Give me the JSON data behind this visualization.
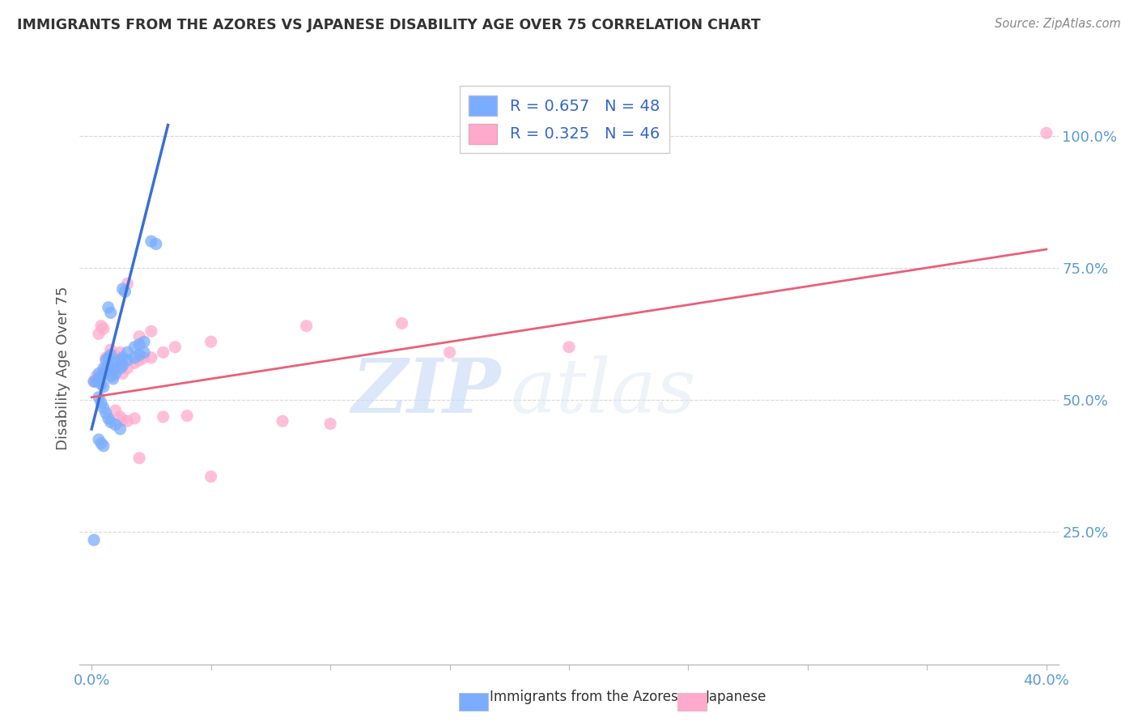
{
  "title": "IMMIGRANTS FROM THE AZORES VS JAPANESE DISABILITY AGE OVER 75 CORRELATION CHART",
  "source": "Source: ZipAtlas.com",
  "ylabel": "Disability Age Over 75",
  "ytick_positions": [
    0.25,
    0.5,
    0.75,
    1.0
  ],
  "ytick_labels": [
    "25.0%",
    "50.0%",
    "75.0%",
    "100.0%"
  ],
  "xtick_positions": [
    0.0,
    0.05,
    0.1,
    0.15,
    0.2,
    0.25,
    0.3,
    0.35,
    0.4
  ],
  "xtick_labels": [
    "0.0%",
    "",
    "",
    "",
    "",
    "",
    "",
    "",
    "40.0%"
  ],
  "legend_text1": "R = 0.657   N = 48",
  "legend_text2": "R = 0.325   N = 46",
  "legend_label1": "Immigrants from the Azores",
  "legend_label2": "Japanese",
  "blue_color": "#7aadff",
  "pink_color": "#ffaacc",
  "blue_line_color": "#3b6fd4",
  "pink_line_color": "#e8607a",
  "blue_scatter": [
    [
      0.001,
      0.535
    ],
    [
      0.002,
      0.535
    ],
    [
      0.003,
      0.54
    ],
    [
      0.003,
      0.55
    ],
    [
      0.004,
      0.545
    ],
    [
      0.004,
      0.53
    ],
    [
      0.005,
      0.56
    ],
    [
      0.005,
      0.525
    ],
    [
      0.006,
      0.575
    ],
    [
      0.006,
      0.555
    ],
    [
      0.007,
      0.58
    ],
    [
      0.007,
      0.565
    ],
    [
      0.008,
      0.585
    ],
    [
      0.008,
      0.545
    ],
    [
      0.009,
      0.56
    ],
    [
      0.009,
      0.54
    ],
    [
      0.01,
      0.57
    ],
    [
      0.01,
      0.55
    ],
    [
      0.012,
      0.575
    ],
    [
      0.012,
      0.56
    ],
    [
      0.013,
      0.58
    ],
    [
      0.013,
      0.565
    ],
    [
      0.015,
      0.59
    ],
    [
      0.015,
      0.575
    ],
    [
      0.018,
      0.6
    ],
    [
      0.018,
      0.58
    ],
    [
      0.02,
      0.605
    ],
    [
      0.02,
      0.585
    ],
    [
      0.022,
      0.61
    ],
    [
      0.022,
      0.59
    ],
    [
      0.003,
      0.505
    ],
    [
      0.004,
      0.495
    ],
    [
      0.005,
      0.485
    ],
    [
      0.006,
      0.475
    ],
    [
      0.007,
      0.465
    ],
    [
      0.008,
      0.458
    ],
    [
      0.01,
      0.453
    ],
    [
      0.012,
      0.445
    ],
    [
      0.003,
      0.425
    ],
    [
      0.004,
      0.418
    ],
    [
      0.005,
      0.413
    ],
    [
      0.001,
      0.235
    ],
    [
      0.007,
      0.675
    ],
    [
      0.008,
      0.665
    ],
    [
      0.013,
      0.71
    ],
    [
      0.014,
      0.705
    ],
    [
      0.025,
      0.8
    ],
    [
      0.027,
      0.795
    ]
  ],
  "pink_scatter": [
    [
      0.001,
      0.535
    ],
    [
      0.002,
      0.545
    ],
    [
      0.003,
      0.54
    ],
    [
      0.004,
      0.545
    ],
    [
      0.005,
      0.555
    ],
    [
      0.006,
      0.56
    ],
    [
      0.007,
      0.56
    ],
    [
      0.008,
      0.55
    ],
    [
      0.009,
      0.545
    ],
    [
      0.01,
      0.56
    ],
    [
      0.012,
      0.565
    ],
    [
      0.013,
      0.55
    ],
    [
      0.015,
      0.56
    ],
    [
      0.018,
      0.57
    ],
    [
      0.02,
      0.575
    ],
    [
      0.022,
      0.58
    ],
    [
      0.025,
      0.58
    ],
    [
      0.03,
      0.59
    ],
    [
      0.035,
      0.6
    ],
    [
      0.05,
      0.61
    ],
    [
      0.003,
      0.625
    ],
    [
      0.004,
      0.64
    ],
    [
      0.005,
      0.635
    ],
    [
      0.006,
      0.58
    ],
    [
      0.01,
      0.585
    ],
    [
      0.012,
      0.59
    ],
    [
      0.008,
      0.595
    ],
    [
      0.02,
      0.62
    ],
    [
      0.025,
      0.63
    ],
    [
      0.01,
      0.48
    ],
    [
      0.012,
      0.468
    ],
    [
      0.013,
      0.462
    ],
    [
      0.015,
      0.46
    ],
    [
      0.018,
      0.465
    ],
    [
      0.03,
      0.468
    ],
    [
      0.04,
      0.47
    ],
    [
      0.08,
      0.46
    ],
    [
      0.02,
      0.39
    ],
    [
      0.05,
      0.355
    ],
    [
      0.015,
      0.72
    ],
    [
      0.1,
      0.455
    ],
    [
      0.15,
      0.59
    ],
    [
      0.2,
      0.6
    ],
    [
      0.4,
      1.005
    ],
    [
      0.13,
      0.645
    ],
    [
      0.09,
      0.64
    ]
  ],
  "blue_line_x": [
    0.0,
    0.032
  ],
  "blue_line_y": [
    0.445,
    1.02
  ],
  "pink_line_x": [
    0.0,
    0.4
  ],
  "pink_line_y": [
    0.505,
    0.785
  ],
  "xlim": [
    -0.005,
    0.405
  ],
  "ylim": [
    0.0,
    1.12
  ],
  "watermark_zip": "ZIP",
  "watermark_atlas": "atlas",
  "background": "#ffffff",
  "grid_color": "#d8d8d8",
  "title_color": "#333333",
  "source_color": "#888888",
  "tick_color": "#5b9bd5",
  "ylabel_color": "#555555"
}
